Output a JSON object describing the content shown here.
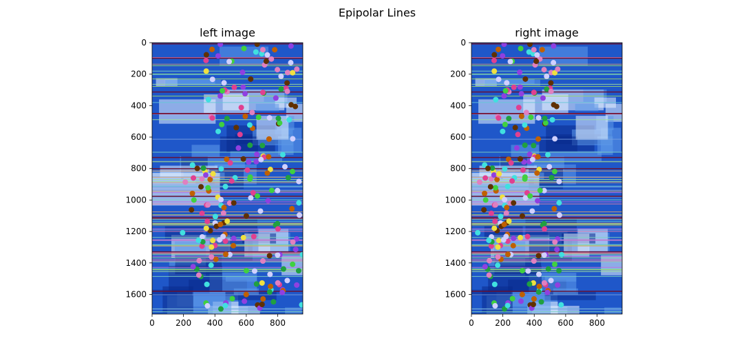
{
  "figure": {
    "suptitle": "Epipolar Lines"
  },
  "chart_data": [
    {
      "type": "image",
      "title": "left image",
      "xlim": [
        0,
        960
      ],
      "ylim": [
        1725,
        0
      ],
      "xticks": [
        0,
        200,
        400,
        600,
        800
      ],
      "yticks": [
        0,
        200,
        400,
        600,
        800,
        1000,
        1200,
        1400,
        1600
      ],
      "grid": false
    },
    {
      "type": "image",
      "title": "right image",
      "xlim": [
        0,
        960
      ],
      "ylim": [
        1725,
        0
      ],
      "xticks": [
        0,
        200,
        400,
        600,
        800
      ],
      "yticks": [
        0,
        200,
        400,
        600,
        800,
        1000,
        1200,
        1400,
        1600
      ],
      "grid": false
    }
  ],
  "colors": {
    "image_base": "#1f57c9",
    "image_light": "#5f9bea",
    "image_dark": "#0a2a8c",
    "line_palette": [
      "#7fd4c0",
      "#e57fb0",
      "#9ad66a",
      "#7aa0e0",
      "#d9a070",
      "#66c8d8",
      "#c070e0",
      "#a0e0a0"
    ],
    "point_palette": [
      "#e04090",
      "#40d040",
      "#c06000",
      "#9040e0",
      "#f0e040",
      "#e080c0",
      "#20a040",
      "#d0d0ff",
      "#603000",
      "#40e0e0"
    ]
  }
}
